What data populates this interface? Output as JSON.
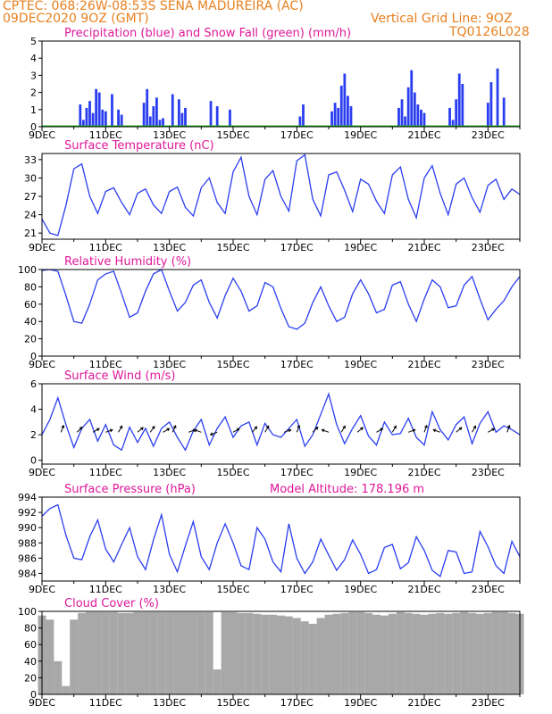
{
  "header": {
    "line1": "CPTEC:   068:26W-08:53S   SENA MADUREIRA (AC)",
    "line2": "09DEC2020 9OZ (GMT)",
    "grid_note": "Vertical Grid Line: 9OZ",
    "code": "TQ0126L028"
  },
  "colors": {
    "title": "#e0189a",
    "header": "#e8801e",
    "series": "#2a3ef0",
    "snow": "#18b418",
    "cloud": "#a8a8a8",
    "arrow": "#000000"
  },
  "x_tick_labels": [
    "9DEC",
    "11DEC",
    "13DEC",
    "15DEC",
    "17DEC",
    "19DEC",
    "21DEC",
    "23DEC"
  ],
  "chart_data": [
    {
      "type": "bar",
      "title": "Precipitation (blue) and Snow Fall (green) (mm/h)",
      "y_ticks": [
        0,
        1,
        2,
        3,
        4,
        5
      ],
      "ylim": [
        0,
        5
      ],
      "series": [
        {
          "name": "Precipitation",
          "color": "#2a3ef0",
          "x": [
            1.2,
            1.3,
            1.4,
            1.5,
            1.6,
            1.7,
            1.8,
            1.9,
            2.0,
            2.2,
            2.4,
            2.5,
            3.2,
            3.3,
            3.4,
            3.5,
            3.6,
            3.7,
            3.8,
            4.1,
            4.3,
            4.4,
            4.5,
            5.3,
            5.5,
            5.9,
            8.1,
            8.2,
            9.1,
            9.2,
            9.3,
            9.4,
            9.5,
            9.6,
            9.7,
            11.2,
            11.3,
            11.4,
            11.5,
            11.6,
            11.7,
            11.8,
            11.9,
            12.0,
            12.8,
            12.9,
            13.0,
            13.1,
            13.2,
            14.0,
            14.1,
            14.3,
            14.5
          ],
          "values": [
            1.3,
            0.4,
            1.1,
            1.5,
            0.8,
            2.2,
            2.0,
            1.0,
            0.9,
            1.9,
            1.0,
            0.7,
            1.4,
            2.2,
            0.6,
            1.2,
            1.7,
            0.4,
            0.5,
            1.9,
            1.6,
            0.8,
            1.1,
            1.5,
            1.2,
            1.0,
            0.6,
            1.3,
            0.9,
            1.4,
            1.1,
            2.4,
            3.1,
            1.8,
            1.2,
            1.1,
            1.6,
            0.6,
            2.3,
            3.3,
            2.0,
            1.3,
            1.0,
            0.8,
            1.1,
            0.4,
            1.6,
            3.1,
            2.5,
            1.4,
            2.6,
            3.4,
            1.7
          ],
          "note": "indices in days since 9DEC (hourly bars)"
        },
        {
          "name": "Snow Fall",
          "color": "#18b418",
          "x": [
            0,
            15
          ],
          "values": [
            0,
            0
          ]
        }
      ]
    },
    {
      "type": "line",
      "title": "Surface Temperature (nC)",
      "y_ticks": [
        21,
        24,
        27,
        30,
        33
      ],
      "ylim": [
        20,
        34
      ],
      "x": [
        0,
        0.25,
        0.5,
        0.75,
        1.0,
        1.25,
        1.5,
        1.75,
        2.0,
        2.25,
        2.5,
        2.75,
        3.0,
        3.25,
        3.5,
        3.75,
        4.0,
        4.25,
        4.5,
        4.75,
        5.0,
        5.25,
        5.5,
        5.75,
        6.0,
        6.25,
        6.5,
        6.75,
        7.0,
        7.25,
        7.5,
        7.75,
        8.0,
        8.25,
        8.5,
        8.75,
        9.0,
        9.25,
        9.5,
        9.75,
        10.0,
        10.25,
        10.5,
        10.75,
        11.0,
        11.25,
        11.5,
        11.75,
        12.0,
        12.25,
        12.5,
        12.75,
        13.0,
        13.25,
        13.5,
        13.75,
        14.0,
        14.25,
        14.5,
        14.75,
        15.0
      ],
      "values": [
        23.3,
        21.0,
        20.6,
        25.5,
        31.5,
        32.3,
        27.0,
        24.2,
        27.8,
        28.4,
        26.0,
        24.0,
        27.5,
        28.2,
        25.6,
        24.2,
        27.8,
        28.5,
        25.2,
        23.8,
        28.4,
        30.0,
        26.0,
        24.2,
        31.0,
        33.4,
        27.0,
        24.0,
        29.8,
        31.2,
        27.0,
        24.6,
        32.8,
        33.8,
        26.5,
        23.8,
        30.5,
        31.0,
        28.0,
        24.5,
        29.8,
        29.0,
        26.2,
        24.2,
        30.5,
        31.8,
        26.5,
        23.5,
        30.0,
        32.0,
        27.5,
        24.0,
        29.0,
        30.0,
        26.8,
        24.4,
        28.8,
        29.8,
        26.5,
        28.2,
        27.3
      ]
    },
    {
      "type": "line",
      "title": "Relative Humidity (%)",
      "y_ticks": [
        0,
        20,
        40,
        60,
        80,
        100
      ],
      "ylim": [
        0,
        100
      ],
      "x": [
        0,
        0.25,
        0.5,
        0.75,
        1.0,
        1.25,
        1.5,
        1.75,
        2.0,
        2.25,
        2.5,
        2.75,
        3.0,
        3.25,
        3.5,
        3.75,
        4.0,
        4.25,
        4.5,
        4.75,
        5.0,
        5.25,
        5.5,
        5.75,
        6.0,
        6.25,
        6.5,
        6.75,
        7.0,
        7.25,
        7.5,
        7.75,
        8.0,
        8.25,
        8.5,
        8.75,
        9.0,
        9.25,
        9.5,
        9.75,
        10.0,
        10.25,
        10.5,
        10.75,
        11.0,
        11.25,
        11.5,
        11.75,
        12.0,
        12.25,
        12.5,
        12.75,
        13.0,
        13.25,
        13.5,
        13.75,
        14.0,
        14.25,
        14.5,
        14.75,
        15.0
      ],
      "values": [
        99,
        100,
        98,
        70,
        40,
        38,
        60,
        88,
        95,
        98,
        72,
        45,
        50,
        75,
        95,
        100,
        75,
        52,
        62,
        82,
        88,
        62,
        44,
        70,
        90,
        75,
        52,
        58,
        85,
        80,
        55,
        34,
        31,
        38,
        62,
        80,
        58,
        40,
        45,
        72,
        88,
        72,
        50,
        54,
        82,
        86,
        60,
        40,
        66,
        88,
        80,
        56,
        58,
        82,
        92,
        66,
        42,
        54,
        64,
        80,
        92
      ]
    },
    {
      "type": "line",
      "title": "Surface Wind (m/s)",
      "y_ticks": [
        0,
        2,
        4,
        6
      ],
      "ylim": [
        -0.3,
        6
      ],
      "x": [
        0,
        0.25,
        0.5,
        0.75,
        1.0,
        1.25,
        1.5,
        1.75,
        2.0,
        2.25,
        2.5,
        2.75,
        3.0,
        3.25,
        3.5,
        3.75,
        4.0,
        4.25,
        4.5,
        4.75,
        5.0,
        5.25,
        5.5,
        5.75,
        6.0,
        6.25,
        6.5,
        6.75,
        7.0,
        7.25,
        7.5,
        7.75,
        8.0,
        8.25,
        8.5,
        8.75,
        9.0,
        9.25,
        9.5,
        9.75,
        10.0,
        10.25,
        10.5,
        10.75,
        11.0,
        11.25,
        11.5,
        11.75,
        12.0,
        12.25,
        12.5,
        12.75,
        13.0,
        13.25,
        13.5,
        13.75,
        14.0,
        14.25,
        14.5,
        14.75,
        15.0
      ],
      "values": [
        2.0,
        3.2,
        4.9,
        2.8,
        1.0,
        2.5,
        3.2,
        1.5,
        2.8,
        1.2,
        0.8,
        2.6,
        1.4,
        2.5,
        1.1,
        2.5,
        3.0,
        1.8,
        0.8,
        2.3,
        3.2,
        1.2,
        2.5,
        3.4,
        1.8,
        2.7,
        3.0,
        1.2,
        2.9,
        2.0,
        1.8,
        2.5,
        3.2,
        1.1,
        2.0,
        3.6,
        5.2,
        2.8,
        1.3,
        2.5,
        3.5,
        1.9,
        1.2,
        3.0,
        2.0,
        2.1,
        3.3,
        1.8,
        1.2,
        3.8,
        2.4,
        1.6,
        2.8,
        3.4,
        1.3,
        2.9,
        3.8,
        2.2,
        2.7,
        2.4,
        2.0
      ],
      "arrows": [
        {
          "x": 0.6,
          "dir": -70
        },
        {
          "x": 1.1,
          "dir": -45
        },
        {
          "x": 1.6,
          "dir": -30
        },
        {
          "x": 2.0,
          "dir": -20
        },
        {
          "x": 2.4,
          "dir": -60
        },
        {
          "x": 3.0,
          "dir": -40
        },
        {
          "x": 3.4,
          "dir": -55
        },
        {
          "x": 3.8,
          "dir": -30
        },
        {
          "x": 4.1,
          "dir": -65
        },
        {
          "x": 4.6,
          "dir": -20
        },
        {
          "x": 5.0,
          "dir": 200
        },
        {
          "x": 5.5,
          "dir": 160
        },
        {
          "x": 6.0,
          "dir": -30
        },
        {
          "x": 6.6,
          "dir": -50
        },
        {
          "x": 7.0,
          "dir": -60
        },
        {
          "x": 7.6,
          "dir": -20
        },
        {
          "x": 8.0,
          "dir": -70
        },
        {
          "x": 8.5,
          "dir": -45
        },
        {
          "x": 9.0,
          "dir": 200
        },
        {
          "x": 9.4,
          "dir": -60
        },
        {
          "x": 9.9,
          "dir": -40
        },
        {
          "x": 10.5,
          "dir": -30
        },
        {
          "x": 11.0,
          "dir": -60
        },
        {
          "x": 11.5,
          "dir": -20
        },
        {
          "x": 12.0,
          "dir": -70
        },
        {
          "x": 12.5,
          "dir": 200
        },
        {
          "x": 13.0,
          "dir": -40
        },
        {
          "x": 13.5,
          "dir": -60
        },
        {
          "x": 14.0,
          "dir": -30
        },
        {
          "x": 14.6,
          "dir": -70
        }
      ]
    },
    {
      "type": "line",
      "title": "Surface Pressure (hPa)",
      "annotation": "Model Altitude: 178.196  m",
      "y_ticks": [
        984,
        986,
        988,
        990,
        992,
        994
      ],
      "ylim": [
        983,
        994
      ],
      "x": [
        0,
        0.25,
        0.5,
        0.75,
        1.0,
        1.25,
        1.5,
        1.75,
        2.0,
        2.25,
        2.5,
        2.75,
        3.0,
        3.25,
        3.5,
        3.75,
        4.0,
        4.25,
        4.5,
        4.75,
        5.0,
        5.25,
        5.5,
        5.75,
        6.0,
        6.25,
        6.5,
        6.75,
        7.0,
        7.25,
        7.5,
        7.75,
        8.0,
        8.25,
        8.5,
        8.75,
        9.0,
        9.25,
        9.5,
        9.75,
        10.0,
        10.25,
        10.5,
        10.75,
        11.0,
        11.25,
        11.5,
        11.75,
        12.0,
        12.25,
        12.5,
        12.75,
        13.0,
        13.25,
        13.5,
        13.75,
        14.0,
        14.25,
        14.5,
        14.75,
        15.0
      ],
      "values": [
        991.5,
        992.5,
        993.0,
        989.0,
        986.0,
        985.8,
        988.8,
        991.0,
        987.2,
        985.5,
        987.8,
        990.0,
        986.2,
        984.5,
        988.4,
        991.7,
        986.5,
        984.2,
        987.6,
        990.8,
        986.2,
        984.5,
        988.0,
        990.5,
        988.0,
        985.0,
        984.5,
        990.0,
        988.5,
        985.5,
        984.2,
        990.5,
        986.0,
        984.0,
        985.5,
        988.5,
        986.4,
        984.4,
        985.8,
        988.4,
        986.5,
        984.0,
        984.5,
        987.4,
        987.8,
        984.6,
        985.4,
        988.8,
        987.0,
        984.4,
        983.6,
        987.0,
        986.8,
        984.0,
        984.2,
        989.5,
        987.5,
        985.0,
        984.0,
        988.2,
        986.2
      ]
    },
    {
      "type": "bar",
      "title": "Cloud Cover (%)",
      "y_ticks": [
        0,
        20,
        40,
        60,
        80,
        100
      ],
      "ylim": [
        0,
        100
      ],
      "color": "#a8a8a8",
      "x": [
        0,
        0.25,
        0.5,
        0.75,
        1.0,
        1.25,
        1.5,
        1.75,
        2.0,
        2.25,
        2.5,
        2.75,
        3.0,
        3.25,
        3.5,
        3.75,
        4.0,
        4.25,
        4.5,
        4.75,
        5.0,
        5.25,
        5.5,
        5.75,
        6.0,
        6.25,
        6.5,
        6.75,
        7.0,
        7.25,
        7.5,
        7.75,
        8.0,
        8.25,
        8.5,
        8.75,
        9.0,
        9.25,
        9.5,
        9.75,
        10.0,
        10.25,
        10.5,
        10.75,
        11.0,
        11.25,
        11.5,
        11.75,
        12.0,
        12.25,
        12.5,
        12.75,
        13.0,
        13.25,
        13.5,
        13.75,
        14.0,
        14.25,
        14.5,
        14.75,
        15.0
      ],
      "values": [
        95,
        90,
        40,
        10,
        90,
        98,
        99,
        99,
        99,
        99,
        98,
        98,
        99,
        99,
        99,
        99,
        99,
        99,
        99,
        99,
        99,
        99,
        30,
        99,
        99,
        98,
        98,
        97,
        96,
        96,
        95,
        94,
        92,
        88,
        85,
        92,
        96,
        97,
        98,
        99,
        99,
        98,
        96,
        95,
        97,
        99,
        98,
        97,
        96,
        97,
        98,
        97,
        98,
        99,
        98,
        97,
        98,
        99,
        99,
        98,
        97
      ]
    }
  ]
}
